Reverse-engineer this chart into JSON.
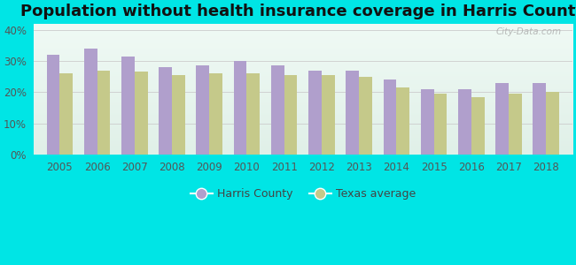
{
  "title": "Population without health insurance coverage in Harris County",
  "years": [
    2005,
    2006,
    2007,
    2008,
    2009,
    2010,
    2011,
    2012,
    2013,
    2014,
    2015,
    2016,
    2017,
    2018
  ],
  "harris_county": [
    32.0,
    34.0,
    31.5,
    28.0,
    28.5,
    30.0,
    28.5,
    27.0,
    27.0,
    24.0,
    21.0,
    21.0,
    23.0,
    23.0
  ],
  "texas_avg": [
    26.0,
    27.0,
    26.5,
    25.5,
    26.0,
    26.0,
    25.5,
    25.5,
    25.0,
    21.5,
    19.5,
    18.5,
    19.5,
    20.0
  ],
  "harris_color": "#b09fcc",
  "texas_color": "#c5c98a",
  "background_color": "#00e5e5",
  "plot_bg_top": "#f0faf5",
  "plot_bg_bottom": "#e0f0e8",
  "bar_width": 0.35,
  "ylim": [
    0,
    42
  ],
  "yticks": [
    0,
    10,
    20,
    30,
    40
  ],
  "ytick_labels": [
    "0%",
    "10%",
    "20%",
    "30%",
    "40%"
  ],
  "legend_harris": "Harris County",
  "legend_texas": "Texas average",
  "watermark": "City-Data.com",
  "title_fontsize": 13,
  "tick_fontsize": 8.5,
  "legend_fontsize": 9
}
